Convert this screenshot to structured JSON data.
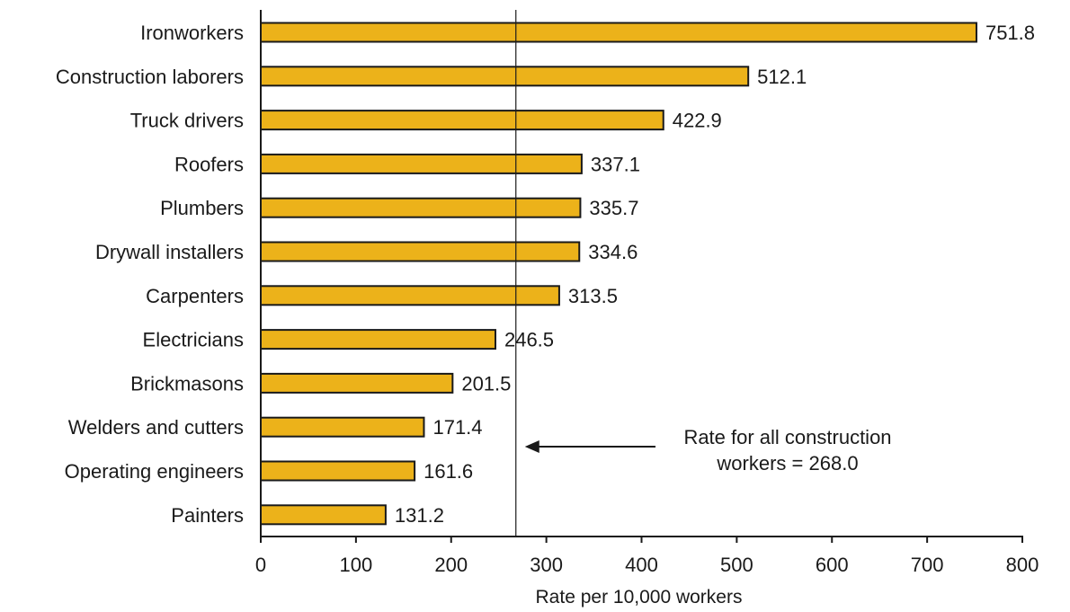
{
  "chart_data": {
    "type": "bar",
    "orientation": "horizontal",
    "categories": [
      "Ironworkers",
      "Construction laborers",
      "Truck drivers",
      "Roofers",
      "Plumbers",
      "Drywall installers",
      "Carpenters",
      "Electricians",
      "Brickmasons",
      "Welders and cutters",
      "Operating engineers",
      "Painters"
    ],
    "values": [
      751.8,
      512.1,
      422.9,
      337.1,
      335.7,
      334.6,
      313.5,
      246.5,
      201.5,
      171.4,
      161.6,
      131.2
    ],
    "data_labels": [
      "751.8",
      "512.1",
      "422.9",
      "337.1",
      "335.7",
      "334.6",
      "313.5",
      "246.5",
      "201.5",
      "171.4",
      "161.6",
      "131.2"
    ],
    "xlabel": "Rate per 10,000 workers",
    "ylabel": "",
    "xlim": [
      0,
      800
    ],
    "xticks": [
      0,
      100,
      200,
      300,
      400,
      500,
      600,
      700,
      800
    ],
    "xtick_labels": [
      "0",
      "100",
      "200",
      "300",
      "400",
      "500",
      "600",
      "700",
      "800"
    ],
    "grid": false,
    "reference_line": {
      "value": 268.0,
      "label_lines": [
        "Rate for all construction",
        "workers = 268.0"
      ]
    },
    "colors": {
      "bar_fill": "#ECB21A",
      "bar_stroke": "#1a1a1a",
      "axis": "#1a1a1a",
      "text": "#1a1a1a"
    }
  }
}
